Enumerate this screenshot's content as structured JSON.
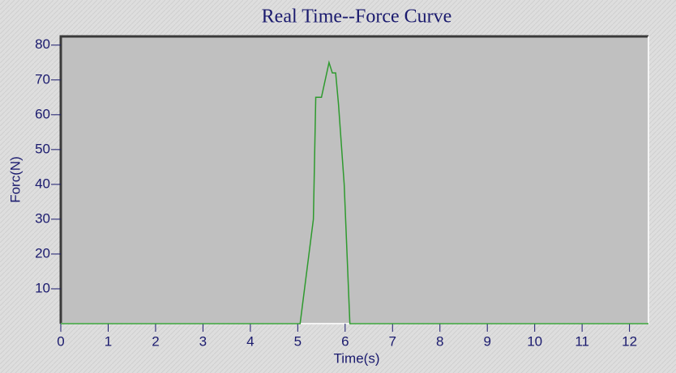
{
  "chart_data": {
    "type": "line",
    "title": "Real Time--Force Curve",
    "x_label": "Time(s)",
    "y_label": "Forc(N)",
    "x": [
      0,
      5.05,
      5.33,
      5.38,
      5.5,
      5.66,
      5.73,
      5.8,
      5.86,
      5.98,
      6.1,
      12.4
    ],
    "series": [
      {
        "name": "Force",
        "color": "#2e9a2e",
        "values": [
          0,
          0,
          30,
          65,
          65,
          75,
          72,
          72,
          63,
          40,
          0,
          0
        ]
      }
    ],
    "xlim": [
      0,
      12.4
    ],
    "ylim": [
      0,
      82.5
    ],
    "xticks": [
      0,
      1,
      2,
      3,
      4,
      5,
      6,
      7,
      8,
      9,
      10,
      11,
      12
    ],
    "yticks": [
      10,
      20,
      30,
      40,
      50,
      60,
      70,
      80
    ],
    "grid": false
  }
}
